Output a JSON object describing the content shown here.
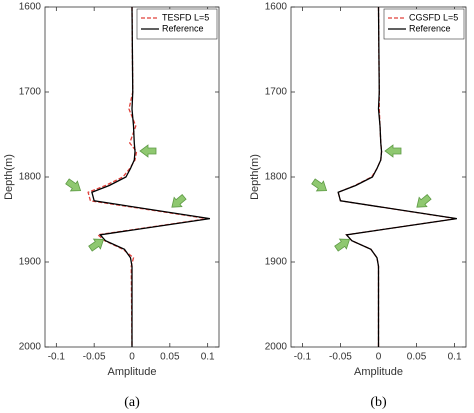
{
  "chart_data": [
    {
      "type": "line",
      "caption": "(a)",
      "xlabel": "Amplitude",
      "ylabel": "Depth(m)",
      "xlim": [
        -0.115,
        0.115
      ],
      "xticks": [
        -0.1,
        -0.05,
        0,
        0.05,
        0.1
      ],
      "ylim": [
        1600,
        2000
      ],
      "yticks": [
        1600,
        1700,
        1800,
        1900,
        2000
      ],
      "y_inverted": true,
      "legend": "upper right",
      "depth": [
        1600,
        1700,
        1720,
        1740,
        1760,
        1770,
        1780,
        1790,
        1800,
        1810,
        1818,
        1828,
        1849,
        1868,
        1875,
        1885,
        1895,
        1905,
        2000
      ],
      "series": [
        {
          "name": "TESFD L=5",
          "color": "#e0403a",
          "dashed": true,
          "values": [
            0,
            0.001,
            -0.004,
            0.005,
            -0.003,
            0.006,
            0.004,
            -0.003,
            -0.012,
            -0.035,
            -0.058,
            -0.055,
            0.1,
            -0.045,
            -0.036,
            -0.012,
            0.002,
            -0.001,
            0
          ]
        },
        {
          "name": "Reference",
          "color": "#000000",
          "dashed": false,
          "values": [
            0,
            0.001,
            0,
            0.002,
            0.003,
            0.004,
            0.003,
            -0.002,
            -0.008,
            -0.03,
            -0.053,
            -0.05,
            0.103,
            -0.042,
            -0.035,
            -0.01,
            -0.002,
            0,
            0
          ]
        }
      ]
    },
    {
      "type": "line",
      "caption": "(b)",
      "xlabel": "Amplitude",
      "ylabel": "Depth(m)",
      "xlim": [
        -0.115,
        0.115
      ],
      "xticks": [
        -0.1,
        -0.05,
        0,
        0.05,
        0.1
      ],
      "ylim": [
        1600,
        2000
      ],
      "yticks": [
        1600,
        1700,
        1800,
        1900,
        2000
      ],
      "y_inverted": true,
      "legend": "upper right",
      "depth": [
        1600,
        1700,
        1720,
        1740,
        1760,
        1770,
        1780,
        1790,
        1800,
        1810,
        1818,
        1828,
        1849,
        1868,
        1875,
        1885,
        1895,
        1905,
        2000
      ],
      "series": [
        {
          "name": "CGSFD L=5",
          "color": "#e0403a",
          "dashed": true,
          "values": [
            0,
            0.001,
            0.001,
            0.002,
            0.003,
            0.004,
            0.003,
            -0.002,
            -0.009,
            -0.031,
            -0.053,
            -0.05,
            0.102,
            -0.042,
            -0.035,
            -0.01,
            -0.002,
            0,
            0
          ]
        },
        {
          "name": "Reference",
          "color": "#000000",
          "dashed": false,
          "values": [
            0,
            0.001,
            0,
            0.002,
            0.003,
            0.004,
            0.003,
            -0.002,
            -0.008,
            -0.03,
            -0.053,
            -0.05,
            0.103,
            -0.042,
            -0.035,
            -0.01,
            -0.002,
            0,
            0
          ]
        }
      ]
    }
  ]
}
